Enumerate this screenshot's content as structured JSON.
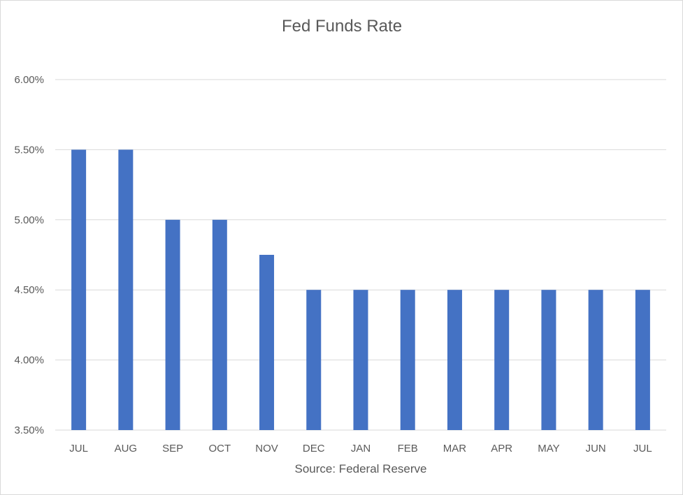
{
  "chart_data": {
    "type": "bar",
    "title": "Fed Funds Rate",
    "xlabel": "Source: Federal Reserve",
    "ylabel": "",
    "categories": [
      "JUL",
      "AUG",
      "SEP",
      "OCT",
      "NOV",
      "DEC",
      "JAN",
      "FEB",
      "MAR",
      "APR",
      "MAY",
      "JUN",
      "JUL"
    ],
    "values": [
      5.5,
      5.5,
      5.0,
      5.0,
      4.75,
      4.5,
      4.5,
      4.5,
      4.5,
      4.5,
      4.5,
      4.5,
      4.5
    ],
    "ylim": [
      3.5,
      6.0
    ],
    "yticks": [
      3.5,
      4.0,
      4.5,
      5.0,
      5.5,
      6.0
    ],
    "ytick_labels": [
      "3.50%",
      "4.00%",
      "4.50%",
      "5.00%",
      "5.50%",
      "6.00%"
    ],
    "grid": true,
    "legend": "none",
    "bar_color": "#4472C4"
  }
}
